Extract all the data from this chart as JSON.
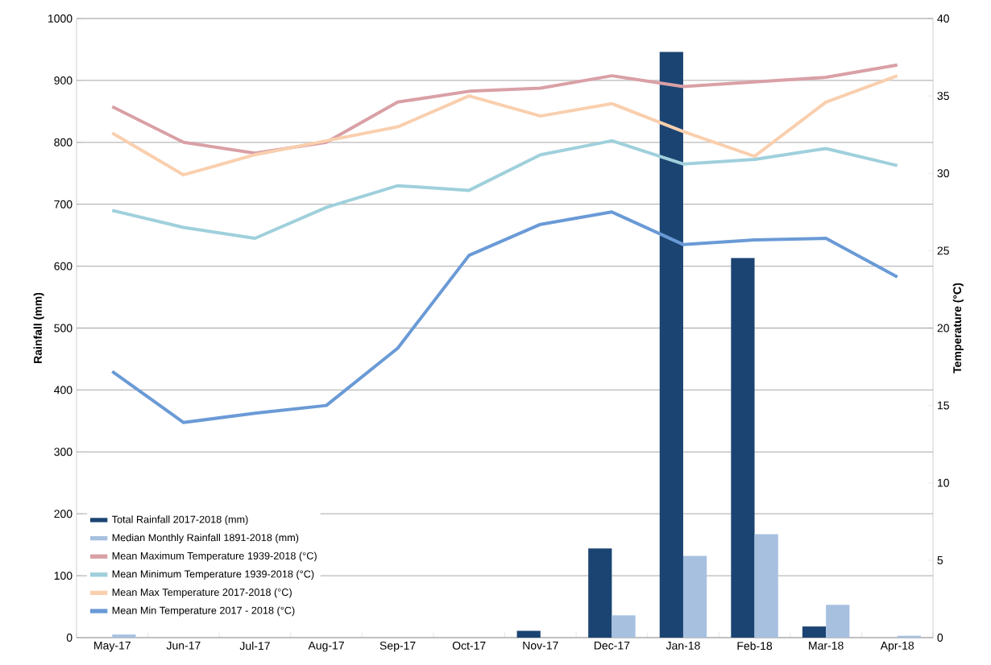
{
  "chart_data": {
    "type": "bar",
    "ylabel": "Rainfall (mm)",
    "y2label": "Temperature  (°C)",
    "categories": [
      "May-17",
      "Jun-17",
      "Jul-17",
      "Aug-17",
      "Sep-17",
      "Oct-17",
      "Nov-17",
      "Dec-17",
      "Jan-18",
      "Feb-18",
      "Mar-18",
      "Apr-18"
    ],
    "ylim": [
      0,
      1000
    ],
    "yticks": [
      0,
      100,
      200,
      300,
      400,
      500,
      600,
      700,
      800,
      900,
      1000
    ],
    "y2lim": [
      0,
      40
    ],
    "y2ticks": [
      0,
      5,
      10,
      15,
      20,
      25,
      30,
      35,
      40
    ],
    "grid": "y",
    "legend": "bottom left",
    "series": [
      {
        "name": "Total Rainfall 2017-2018 (mm)",
        "color": "#1b4472",
        "values": [
          0,
          0,
          0,
          0,
          0,
          0,
          11,
          144,
          946,
          613,
          18,
          0
        ]
      },
      {
        "name": "Median Monthly Rainfall 1891-2018 (mm)",
        "color": "#a7c0e0",
        "values": [
          5,
          0,
          0,
          0,
          0,
          0,
          0,
          36,
          132,
          167,
          53,
          3
        ]
      },
      {
        "name": "Mean Maximum Temperature 1939-2018  (°C)",
        "type": "line",
        "axis": "y2",
        "color": "#d9a0a6",
        "values": [
          34.3,
          32.0,
          31.3,
          32.0,
          34.6,
          35.3,
          35.5,
          36.3,
          35.6,
          35.9,
          36.2,
          37.0
        ]
      },
      {
        "name": "Mean Minimum Temperature 1939-2018  (°C)",
        "type": "line",
        "axis": "y2",
        "color": "#9fd0dc",
        "values": [
          27.6,
          26.5,
          25.8,
          27.8,
          29.2,
          28.9,
          31.2,
          32.1,
          30.6,
          30.9,
          31.6,
          30.5
        ]
      },
      {
        "name": "Mean Max Temperature 2017-2018  (°C)",
        "type": "line",
        "axis": "y2",
        "color": "#f9cfae",
        "values": [
          32.6,
          29.9,
          31.2,
          32.1,
          33.0,
          35.0,
          33.7,
          34.5,
          32.7,
          31.1,
          34.6,
          36.3
        ]
      },
      {
        "name": "Mean Min Temperature 2017 - 2018  (°C)",
        "type": "line",
        "axis": "y2",
        "color": "#6a9ad6",
        "values": [
          17.2,
          13.9,
          14.5,
          15.0,
          18.7,
          24.7,
          26.7,
          27.5,
          25.4,
          25.7,
          25.8,
          23.3
        ]
      }
    ]
  }
}
